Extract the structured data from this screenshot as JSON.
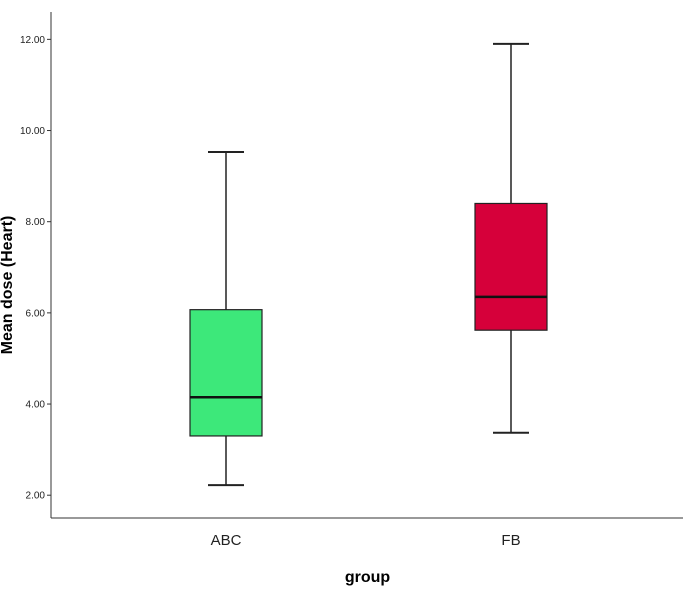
{
  "chart_data": {
    "type": "box",
    "xlabel": "group",
    "ylabel": "Mean dose (Heart)",
    "ylim": [
      1.5,
      12.6
    ],
    "yticks": [
      2,
      4,
      6,
      8,
      10,
      12
    ],
    "ytick_labels": [
      "2.00",
      "4.00",
      "6.00",
      "8.00",
      "10.00",
      "12.00"
    ],
    "grid": false,
    "categories": [
      "ABC",
      "FB"
    ],
    "boxes": [
      {
        "category": "ABC",
        "min": 2.22,
        "q1": 3.3,
        "median": 4.15,
        "q3": 6.07,
        "max": 9.53,
        "color": "#3de87a"
      },
      {
        "category": "FB",
        "min": 3.37,
        "q1": 5.62,
        "median": 6.35,
        "q3": 8.4,
        "max": 11.9,
        "color": "#d6003a"
      }
    ]
  }
}
